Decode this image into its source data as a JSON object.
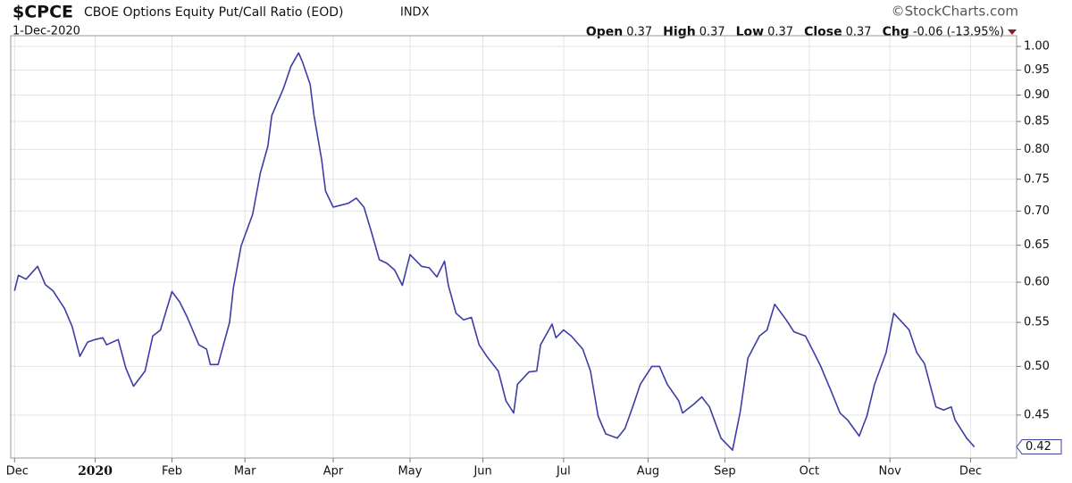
{
  "chart_data": {
    "type": "line",
    "symbol": "$CPCE",
    "title": "CBOE Options Equity Put/Call Ratio (EOD)",
    "exchange": "INDX",
    "credit": "©StockCharts.com",
    "date": "1-Dec-2020",
    "quote": [
      {
        "name": "Open",
        "value": "0.37"
      },
      {
        "name": "High",
        "value": "0.37"
      },
      {
        "name": "Low",
        "value": "0.37"
      },
      {
        "name": "Close",
        "value": "0.37"
      },
      {
        "name": "Chg",
        "value": "-0.06 (-13.95%)"
      }
    ],
    "last_label": "0.42",
    "log_scale": true,
    "grid": true,
    "color": "#3d3da6",
    "xlim": [
      -1,
      261
    ],
    "ylim": [
      0.41,
      1.0235
    ],
    "xticks": [
      {
        "value": 0,
        "label": "Dec"
      },
      {
        "value": 21,
        "label": "2020"
      },
      {
        "value": 41,
        "label": "Feb"
      },
      {
        "value": 60,
        "label": "Mar"
      },
      {
        "value": 83,
        "label": "Apr"
      },
      {
        "value": 103,
        "label": "May"
      },
      {
        "value": 122,
        "label": "Jun"
      },
      {
        "value": 143,
        "label": "Jul"
      },
      {
        "value": 165,
        "label": "Aug"
      },
      {
        "value": 185,
        "label": "Sep"
      },
      {
        "value": 207,
        "label": "Oct"
      },
      {
        "value": 228,
        "label": "Nov"
      },
      {
        "value": 249,
        "label": "Dec"
      }
    ],
    "yticks": [
      0.45,
      {
        "value": 0.5,
        "label": "0.50"
      },
      0.55,
      {
        "value": 0.6,
        "label": "0.60"
      },
      0.65,
      {
        "value": 0.7,
        "label": "0.70"
      },
      0.75,
      {
        "value": 0.8,
        "label": "0.80"
      },
      0.85,
      {
        "value": 0.9,
        "label": "0.90"
      },
      0.95,
      {
        "value": 1.0,
        "label": "1.00"
      }
    ],
    "x": [
      0,
      1,
      3,
      6,
      8,
      10,
      13,
      15,
      17,
      19,
      21,
      23,
      24,
      27,
      29,
      31,
      34,
      36,
      38,
      41,
      43,
      45,
      48,
      50,
      51,
      53,
      56,
      57,
      59,
      62,
      64,
      66,
      67,
      70,
      72,
      74,
      75,
      77,
      78,
      80,
      81,
      83,
      85,
      87,
      89,
      91,
      93,
      95,
      97,
      99,
      101,
      103,
      106,
      108,
      110,
      112,
      113,
      115,
      117,
      119,
      121,
      123,
      126,
      128,
      130,
      131,
      134,
      136,
      137,
      140,
      141,
      143,
      145,
      148,
      150,
      152,
      154,
      157,
      159,
      161,
      163,
      166,
      168,
      170,
      173,
      174,
      177,
      179,
      181,
      184,
      187,
      189,
      191,
      194,
      196,
      198,
      201,
      203,
      206,
      208,
      210,
      213,
      215,
      217,
      220,
      222,
      224,
      227,
      229,
      231,
      233,
      235,
      237,
      240,
      242,
      244,
      245,
      248,
      250
    ],
    "values": [
      0.589,
      0.609,
      0.604,
      0.621,
      0.597,
      0.589,
      0.567,
      0.545,
      0.511,
      0.527,
      0.53,
      0.532,
      0.524,
      0.53,
      0.498,
      0.479,
      0.495,
      0.534,
      0.541,
      0.588,
      0.575,
      0.556,
      0.524,
      0.519,
      0.502,
      0.502,
      0.55,
      0.593,
      0.649,
      0.695,
      0.76,
      0.806,
      0.861,
      0.912,
      0.958,
      0.986,
      0.967,
      0.921,
      0.861,
      0.782,
      0.731,
      0.706,
      0.709,
      0.712,
      0.72,
      0.706,
      0.668,
      0.63,
      0.625,
      0.616,
      0.596,
      0.637,
      0.621,
      0.619,
      0.607,
      0.628,
      0.596,
      0.561,
      0.553,
      0.556,
      0.524,
      0.511,
      0.495,
      0.464,
      0.452,
      0.481,
      0.494,
      0.495,
      0.524,
      0.548,
      0.532,
      0.541,
      0.534,
      0.519,
      0.495,
      0.449,
      0.432,
      0.428,
      0.437,
      0.458,
      0.481,
      0.5,
      0.5,
      0.481,
      0.464,
      0.452,
      0.461,
      0.468,
      0.458,
      0.428,
      0.417,
      0.453,
      0.509,
      0.534,
      0.541,
      0.572,
      0.553,
      0.539,
      0.534,
      0.517,
      0.5,
      0.471,
      0.452,
      0.445,
      0.43,
      0.449,
      0.481,
      0.515,
      0.561,
      0.551,
      0.541,
      0.515,
      0.503,
      0.458,
      0.455,
      0.458,
      0.445,
      0.428,
      0.42
    ]
  }
}
